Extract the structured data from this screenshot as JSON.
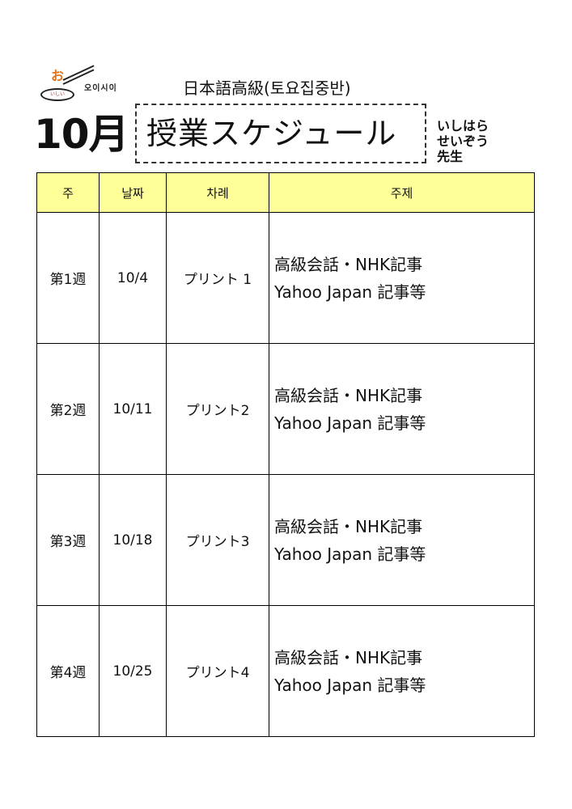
{
  "logo": {
    "mark": "お",
    "ellipse": "いしい",
    "text": "오이시이"
  },
  "header": {
    "subtitle": "日本語高級(토요집중반)",
    "month": "10月",
    "title": "授業スケジュール",
    "teacher_lines": [
      "いしはら",
      "せいぞう",
      "先生"
    ]
  },
  "table": {
    "headers": [
      "주",
      "날짜",
      "차례",
      "주제"
    ],
    "rows": [
      {
        "week": "第1週",
        "date": "10/4",
        "material": "プリント 1",
        "topic_line1": "高級会話・NHK記事",
        "topic_line2": "Yahoo Japan 記事等"
      },
      {
        "week": "第2週",
        "date": "10/11",
        "material": "プリント2",
        "topic_line1": "高級会話・NHK記事",
        "topic_line2": "Yahoo Japan 記事等"
      },
      {
        "week": "第3週",
        "date": "10/18",
        "material": "プリント3",
        "topic_line1": "高級会話・NHK記事",
        "topic_line2": "Yahoo Japan 記事等"
      },
      {
        "week": "第4週",
        "date": "10/25",
        "material": "プリント4",
        "topic_line1": "高級会話・NHK記事",
        "topic_line2": "Yahoo Japan 記事等"
      }
    ]
  },
  "colors": {
    "header_bg": "#ffff99",
    "logo_accent": "#e0731c"
  }
}
